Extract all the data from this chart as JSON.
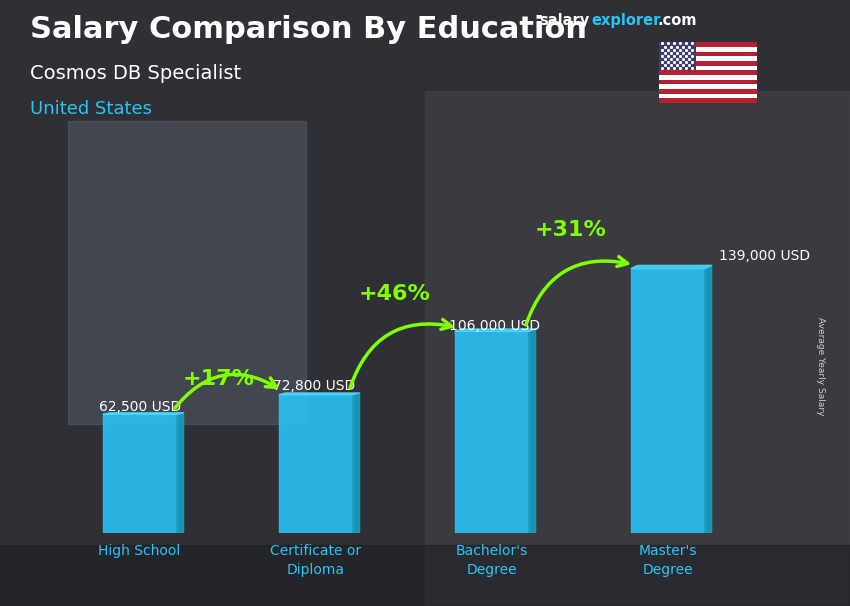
{
  "title": "Salary Comparison By Education",
  "subtitle": "Cosmos DB Specialist",
  "country": "United States",
  "categories": [
    "High School",
    "Certificate or\nDiploma",
    "Bachelor's\nDegree",
    "Master's\nDegree"
  ],
  "values": [
    62500,
    72800,
    106000,
    139000
  ],
  "labels": [
    "62,500 USD",
    "72,800 USD",
    "106,000 USD",
    "139,000 USD"
  ],
  "pct_changes": [
    "+17%",
    "+46%",
    "+31%"
  ],
  "bar_color": "#29C5F6",
  "bar_side_color": "#1A9EC5",
  "bar_top_color": "#4DD8FF",
  "pct_color": "#7FFF00",
  "bg_dark": "#3a3d42",
  "title_color": "#FFFFFF",
  "subtitle_color": "#FFFFFF",
  "country_color": "#29C5F6",
  "label_color": "#FFFFFF",
  "axis_label_color": "#29C5F6",
  "ylabel": "Average Yearly Salary",
  "salary_color": "#FFFFFF",
  "explorer_color": "#29C5F6",
  "com_color": "#FFFFFF",
  "ylim": [
    0,
    175000
  ],
  "bar_width": 0.42,
  "arrow_lw": 2.5,
  "pct_fontsize": 16,
  "label_fontsize": 10,
  "title_fontsize": 22,
  "subtitle_fontsize": 14,
  "country_fontsize": 13,
  "xtick_fontsize": 10
}
